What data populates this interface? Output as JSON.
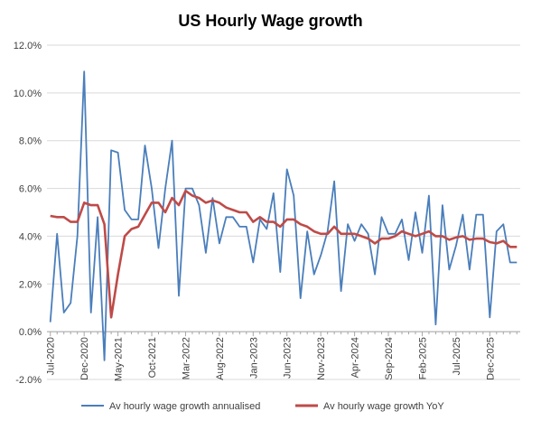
{
  "chart_data": {
    "type": "line",
    "title": "US Hourly Wage growth",
    "xlabel": "",
    "ylabel": "",
    "ylim": [
      -2,
      12
    ],
    "yticks": [
      -2,
      0,
      2,
      4,
      6,
      8,
      10,
      12
    ],
    "ytick_labels": [
      "-2.0%",
      "0.0%",
      "2.0%",
      "4.0%",
      "6.0%",
      "8.0%",
      "10.0%",
      "12.0%"
    ],
    "grid": true,
    "legend_position": "bottom",
    "x_labels": [
      "Jul-2020",
      "Dec-2020",
      "May-2021",
      "Oct-2021",
      "Mar-2022",
      "Aug-2022",
      "Jan-2023",
      "Jun-2023",
      "Nov-2023",
      "Apr-2024",
      "Sep-2024",
      "Feb-2025",
      "Jul-2025",
      "Dec-2025"
    ],
    "x_label_every": 5,
    "x": [
      "Jul-2020",
      "Aug-2020",
      "Sep-2020",
      "Oct-2020",
      "Nov-2020",
      "Dec-2020",
      "Jan-2021",
      "Feb-2021",
      "Mar-2021",
      "Apr-2021",
      "May-2021",
      "Jun-2021",
      "Jul-2021",
      "Aug-2021",
      "Sep-2021",
      "Oct-2021",
      "Nov-2021",
      "Dec-2021",
      "Jan-2022",
      "Feb-2022",
      "Mar-2022",
      "Apr-2022",
      "May-2022",
      "Jun-2022",
      "Jul-2022",
      "Aug-2022",
      "Sep-2022",
      "Oct-2022",
      "Nov-2022",
      "Dec-2022",
      "Jan-2023",
      "Feb-2023",
      "Mar-2023",
      "Apr-2023",
      "May-2023",
      "Jun-2023",
      "Jul-2023",
      "Aug-2023",
      "Sep-2023",
      "Oct-2023",
      "Nov-2023",
      "Dec-2023",
      "Jan-2024",
      "Feb-2024",
      "Mar-2024",
      "Apr-2024",
      "May-2024",
      "Jun-2024",
      "Jul-2024",
      "Aug-2024",
      "Sep-2024",
      "Oct-2024",
      "Nov-2024",
      "Dec-2024",
      "Jan-2025",
      "Feb-2025",
      "Mar-2025",
      "Apr-2025",
      "May-2025",
      "Jun-2025",
      "Jul-2025",
      "Aug-2025",
      "Sep-2025",
      "Oct-2025",
      "Nov-2025",
      "Dec-2025",
      "Jan-2026",
      "Feb-2026",
      "Mar-2026",
      "Apr-2026"
    ],
    "series": [
      {
        "name": "Av hourly wage growth annualised",
        "color": "#4a7ebb",
        "values": [
          0.4,
          4.1,
          0.8,
          1.2,
          4.0,
          10.9,
          0.8,
          4.8,
          -1.2,
          7.6,
          7.5,
          5.1,
          4.7,
          4.7,
          7.8,
          6.0,
          3.5,
          6.0,
          8.0,
          1.5,
          6.0,
          6.0,
          5.3,
          3.3,
          5.6,
          3.7,
          4.8,
          4.8,
          4.4,
          4.4,
          2.9,
          4.7,
          4.3,
          5.8,
          2.5,
          6.8,
          5.7,
          1.4,
          4.2,
          2.4,
          3.2,
          4.2,
          6.3,
          1.7,
          4.5,
          3.8,
          4.5,
          4.1,
          2.4,
          4.8,
          4.1,
          4.1,
          4.7,
          3.0,
          5.0,
          3.3,
          5.7,
          0.3,
          5.3,
          2.6,
          3.6,
          4.9,
          2.6,
          4.9,
          4.9,
          0.6,
          4.2,
          4.5,
          2.9,
          2.9
        ]
      },
      {
        "name": "Av hourly wage growth YoY",
        "color": "#be4b48",
        "values": [
          4.85,
          4.8,
          4.8,
          4.6,
          4.6,
          5.4,
          5.3,
          5.3,
          4.5,
          0.6,
          2.4,
          4.0,
          4.3,
          4.4,
          4.9,
          5.4,
          5.4,
          5.0,
          5.6,
          5.3,
          5.9,
          5.7,
          5.6,
          5.4,
          5.5,
          5.4,
          5.2,
          5.1,
          5.0,
          5.0,
          4.6,
          4.8,
          4.6,
          4.6,
          4.4,
          4.7,
          4.7,
          4.5,
          4.4,
          4.2,
          4.1,
          4.1,
          4.4,
          4.1,
          4.1,
          4.1,
          4.0,
          3.9,
          3.7,
          3.9,
          3.9,
          4.0,
          4.2,
          4.1,
          4.0,
          4.1,
          4.2,
          4.0,
          4.0,
          3.85,
          3.95,
          4.0,
          3.85,
          3.9,
          3.9,
          3.75,
          3.7,
          3.8,
          3.55,
          3.55
        ]
      }
    ]
  }
}
